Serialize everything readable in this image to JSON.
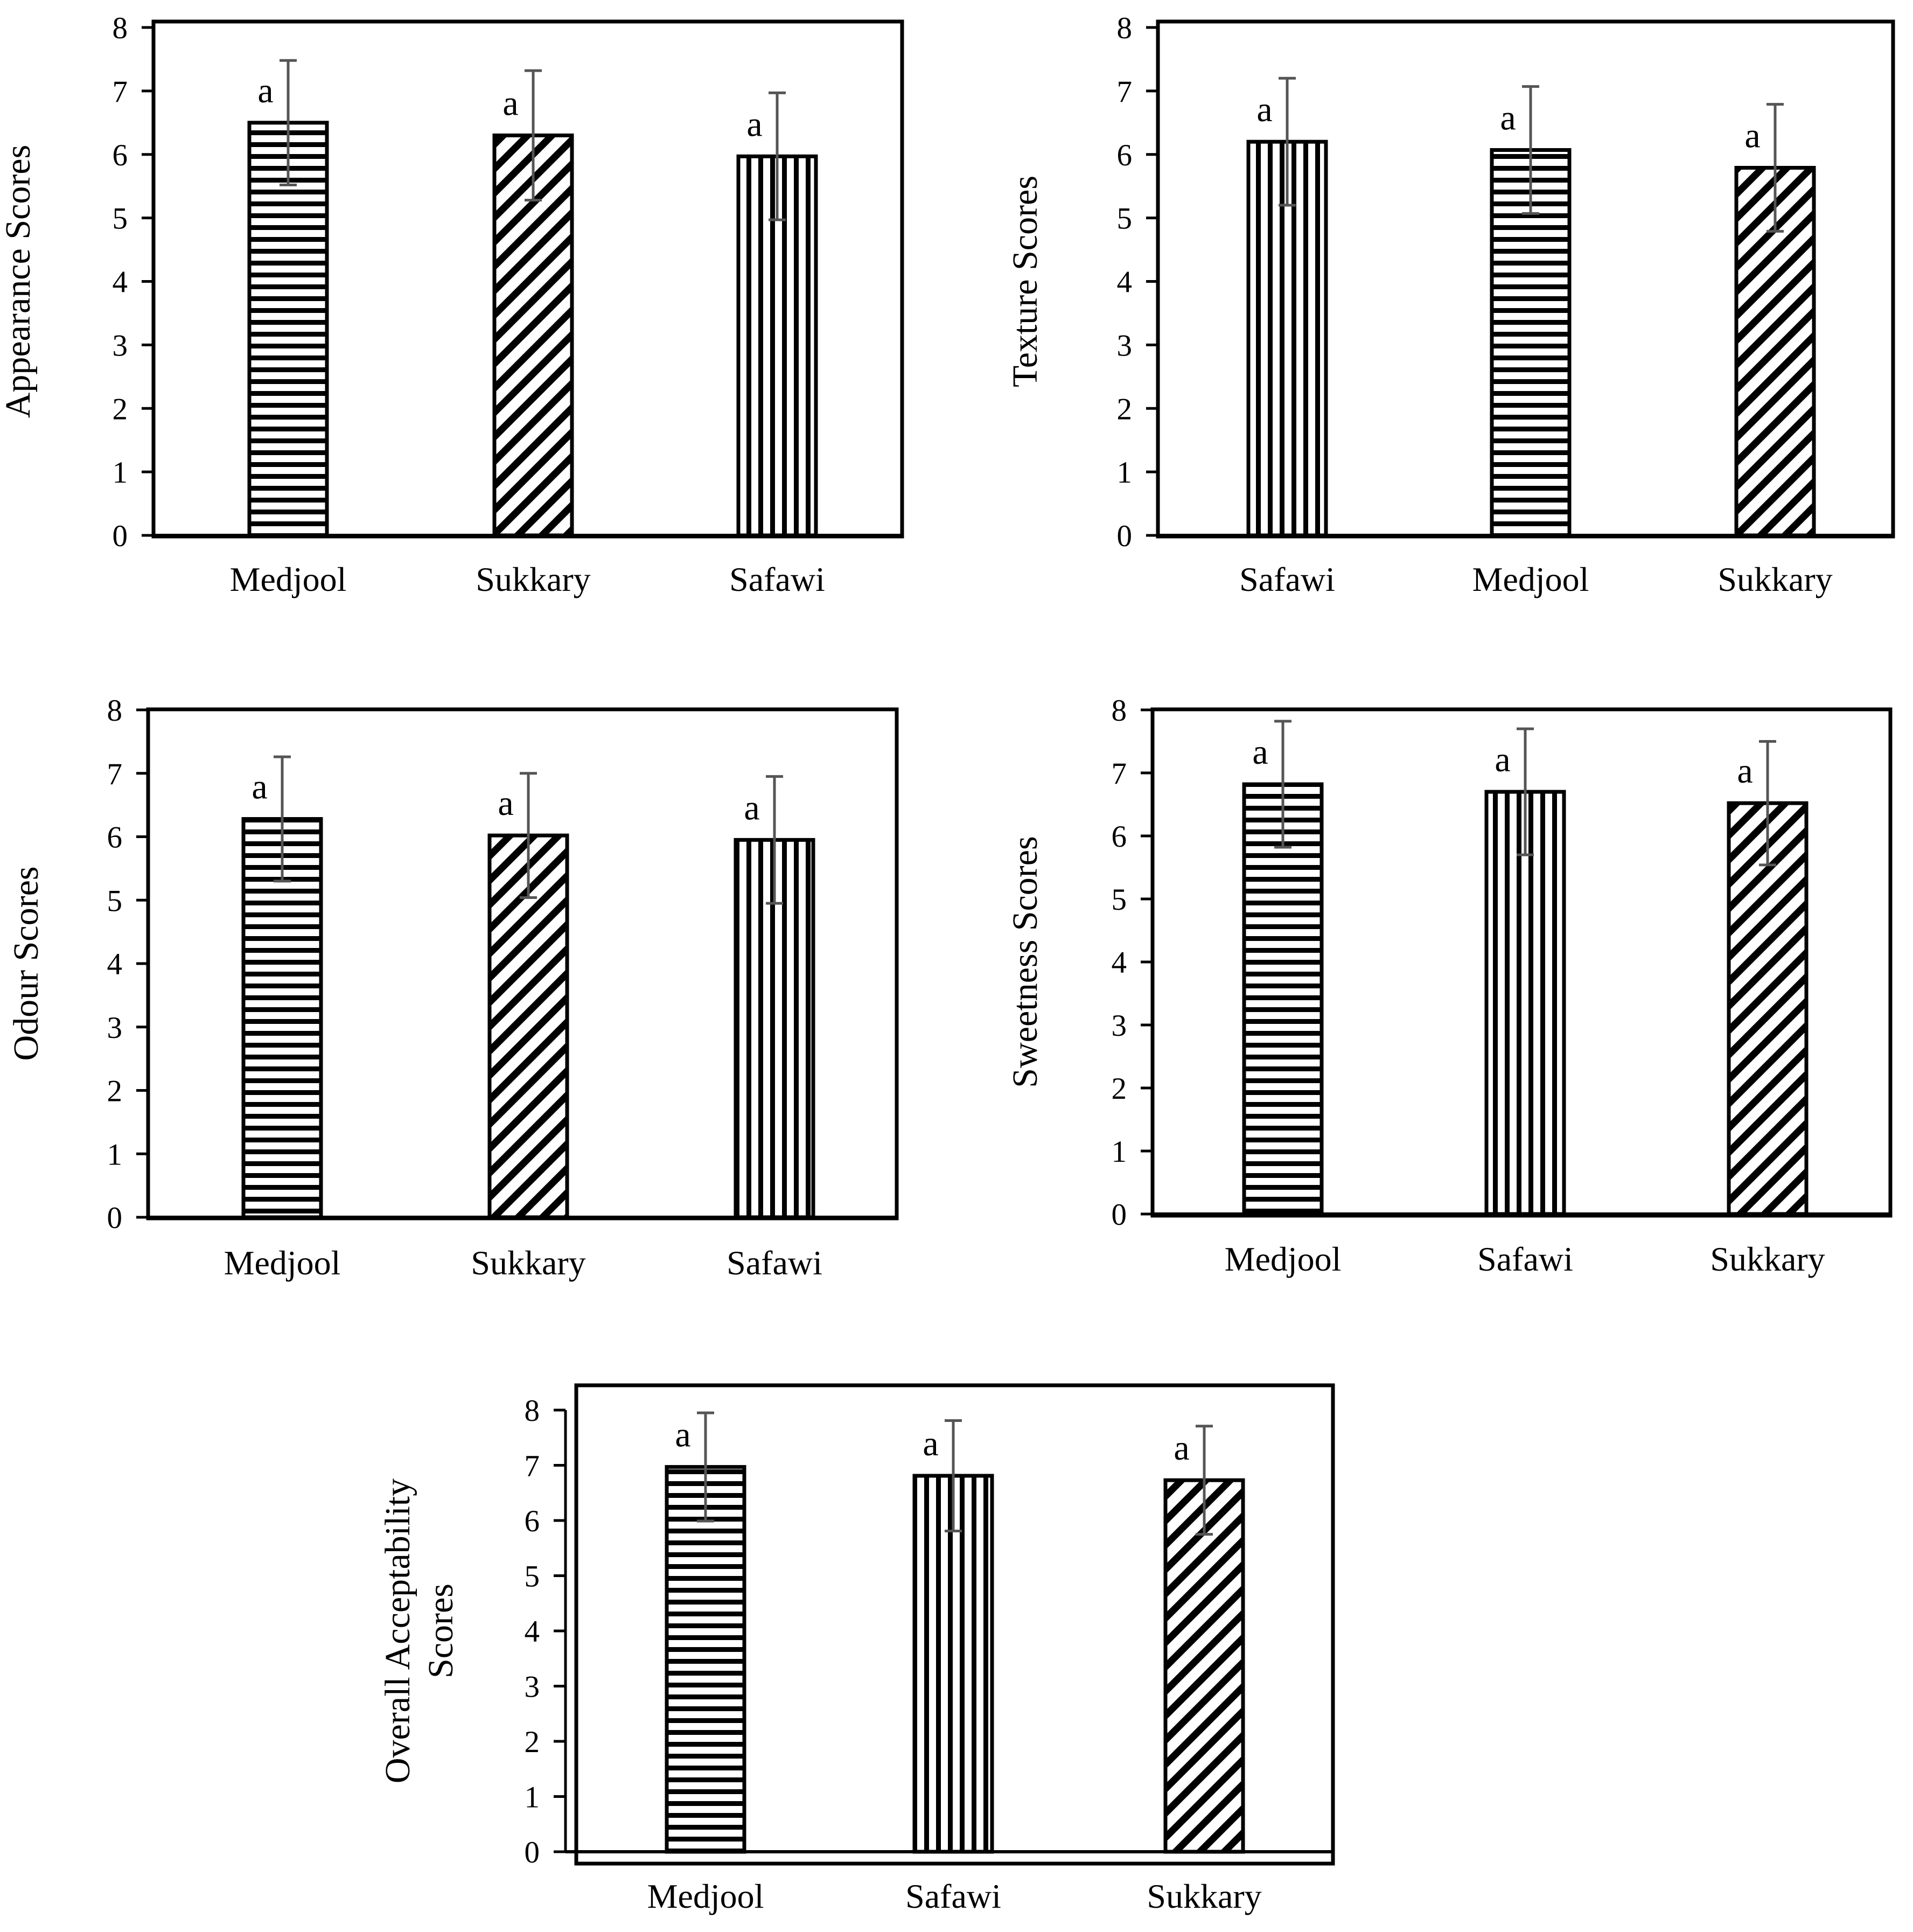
{
  "chart_data": [
    {
      "type": "bar",
      "ylabel": "Appearance Scores",
      "ylim": [
        0,
        8
      ],
      "yticks": [
        "0",
        "1",
        "2",
        "3",
        "4",
        "5",
        "6",
        "7",
        "8"
      ],
      "categories": [
        "Medjool",
        "Sukkary",
        "Safawi"
      ],
      "values": [
        6.5,
        6.3,
        5.97
      ],
      "errors": [
        0.98,
        1.02,
        1.0
      ],
      "patterns": [
        "horizontal",
        "diagonal",
        "vertical"
      ],
      "labels": [
        "a",
        "a",
        "a"
      ]
    },
    {
      "type": "bar",
      "ylabel": "Texture Scores",
      "ylim": [
        0,
        8
      ],
      "yticks": [
        "0",
        "1",
        "2",
        "3",
        "4",
        "5",
        "6",
        "7",
        "8"
      ],
      "categories": [
        "Safawi",
        "Medjool",
        "Sukkary"
      ],
      "values": [
        6.2,
        6.07,
        5.79
      ],
      "errors": [
        1.0,
        1.0,
        1.0
      ],
      "patterns": [
        "vertical",
        "horizontal",
        "diagonal"
      ],
      "labels": [
        "a",
        "a",
        "a"
      ]
    },
    {
      "type": "bar",
      "ylabel": "Odour Scores",
      "ylim": [
        0,
        8
      ],
      "yticks": [
        "0",
        "1",
        "2",
        "3",
        "4",
        "5",
        "6",
        "7",
        "8"
      ],
      "categories": [
        "Medjool",
        "Sukkary",
        "Safawi"
      ],
      "values": [
        6.28,
        6.02,
        5.95
      ],
      "errors": [
        0.98,
        0.98,
        1.0
      ],
      "patterns": [
        "horizontal",
        "diagonal",
        "vertical"
      ],
      "labels": [
        "a",
        "a",
        "a"
      ]
    },
    {
      "type": "bar",
      "ylabel": "Sweetness Scores",
      "ylim": [
        0,
        8
      ],
      "yticks": [
        "0",
        "1",
        "2",
        "3",
        "4",
        "5",
        "6",
        "7",
        "8"
      ],
      "categories": [
        "Medjool",
        "Safawi",
        "Sukkary"
      ],
      "values": [
        6.82,
        6.7,
        6.52
      ],
      "errors": [
        1.0,
        1.0,
        0.98
      ],
      "patterns": [
        "horizontal",
        "vertical",
        "diagonal"
      ],
      "labels": [
        "a",
        "a",
        "a"
      ]
    },
    {
      "type": "bar",
      "ylabel": "Overall Acceptability Scores",
      "ylabel_lines": [
        "Overall Acceptability",
        "Scores"
      ],
      "ylim": [
        0,
        8
      ],
      "yticks": [
        "0",
        "1",
        "2",
        "3",
        "4",
        "5",
        "6",
        "7",
        "8"
      ],
      "categories": [
        "Medjool",
        "Safawi",
        "Sukkary"
      ],
      "values": [
        6.97,
        6.81,
        6.73
      ],
      "errors": [
        0.98,
        1.0,
        0.98
      ],
      "patterns": [
        "horizontal",
        "vertical",
        "diagonal"
      ],
      "labels": [
        "a",
        "a",
        "a"
      ]
    }
  ]
}
